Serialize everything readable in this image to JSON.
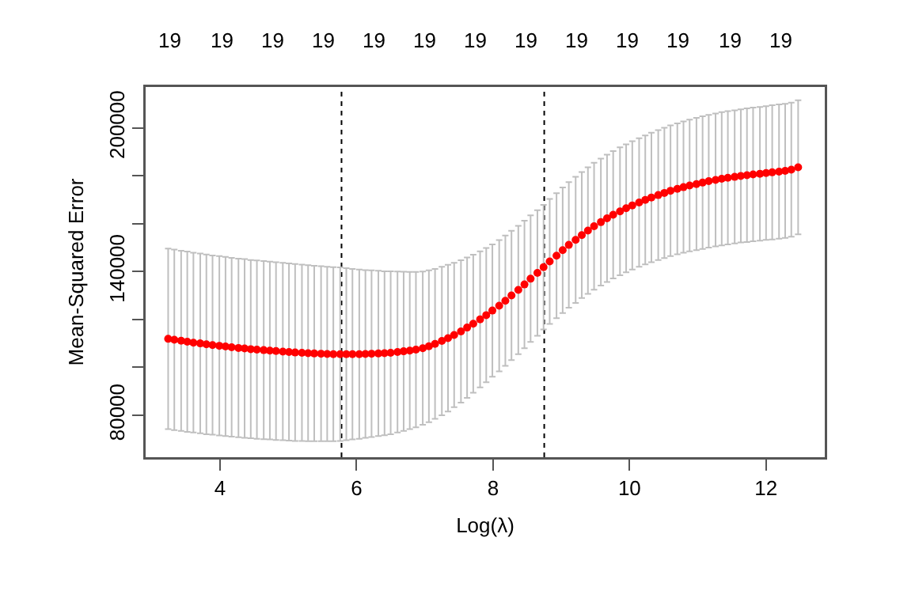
{
  "chart_data": {
    "type": "scatter",
    "xlabel": "Log(λ)",
    "ylabel": "Mean-Squared Error",
    "x": [
      3.24,
      3.33,
      3.43,
      3.52,
      3.61,
      3.71,
      3.8,
      3.89,
      3.99,
      4.08,
      4.17,
      4.27,
      4.36,
      4.45,
      4.54,
      4.64,
      4.73,
      4.82,
      4.92,
      5.01,
      5.1,
      5.2,
      5.29,
      5.38,
      5.48,
      5.57,
      5.66,
      5.76,
      5.85,
      5.94,
      6.04,
      6.13,
      6.22,
      6.32,
      6.41,
      6.5,
      6.6,
      6.69,
      6.78,
      6.87,
      6.97,
      7.06,
      7.15,
      7.25,
      7.34,
      7.43,
      7.53,
      7.62,
      7.71,
      7.81,
      7.9,
      7.99,
      8.09,
      8.18,
      8.27,
      8.37,
      8.46,
      8.55,
      8.65,
      8.74,
      8.83,
      8.93,
      9.02,
      9.11,
      9.21,
      9.3,
      9.39,
      9.48,
      9.58,
      9.67,
      9.76,
      9.86,
      9.95,
      10.04,
      10.14,
      10.23,
      10.32,
      10.42,
      10.51,
      10.6,
      10.7,
      10.79,
      10.88,
      10.98,
      11.07,
      11.16,
      11.26,
      11.35,
      11.44,
      11.54,
      11.63,
      11.72,
      11.81,
      11.91,
      12.0,
      12.09,
      12.19,
      12.28,
      12.37,
      12.47
    ],
    "series": [
      {
        "color": "#ff0000",
        "values": [
          111900,
          111500,
          111100,
          110700,
          110300,
          110000,
          109600,
          109300,
          109000,
          108700,
          108400,
          108100,
          107900,
          107600,
          107400,
          107200,
          107000,
          106800,
          106600,
          106400,
          106200,
          106100,
          105900,
          105800,
          105700,
          105600,
          105500,
          105500,
          105500,
          105500,
          105500,
          105600,
          105700,
          105800,
          105900,
          106100,
          106400,
          106700,
          107000,
          107400,
          108000,
          108800,
          109800,
          111000,
          112200,
          113500,
          115000,
          116600,
          118200,
          120000,
          121800,
          123700,
          125700,
          127800,
          130000,
          132300,
          134600,
          137000,
          139400,
          141800,
          144200,
          146600,
          148900,
          151100,
          153200,
          155200,
          157100,
          158900,
          160600,
          162200,
          163700,
          165100,
          166400,
          167600,
          168800,
          169900,
          170900,
          171900,
          172800,
          173700,
          174500,
          175200,
          175900,
          176500,
          177100,
          177700,
          178200,
          178700,
          179100,
          179500,
          179900,
          180200,
          180500,
          180800,
          181100,
          181400,
          181700,
          182000,
          182500,
          183500
        ],
        "errors": [
          37700,
          37700,
          37600,
          37600,
          37500,
          37500,
          37500,
          37400,
          37400,
          37400,
          37300,
          37300,
          37300,
          37200,
          37200,
          37200,
          37100,
          37100,
          37000,
          37000,
          36900,
          36800,
          36700,
          36600,
          36500,
          36400,
          36300,
          36200,
          35900,
          35600,
          35300,
          35000,
          34800,
          34500,
          34200,
          34000,
          33600,
          33200,
          32800,
          32400,
          32000,
          31700,
          31300,
          31000,
          30600,
          30100,
          29700,
          29300,
          28800,
          28400,
          28000,
          27600,
          27400,
          27200,
          27000,
          26800,
          26600,
          26400,
          26200,
          26000,
          26100,
          26100,
          26200,
          26200,
          26300,
          26300,
          26400,
          26500,
          26500,
          26600,
          26600,
          26700,
          26700,
          26800,
          26800,
          26900,
          27000,
          27100,
          27200,
          27300,
          27300,
          27400,
          27500,
          27600,
          27700,
          27700,
          27700,
          27800,
          27800,
          27800,
          27800,
          27900,
          27900,
          27900,
          27900,
          28000,
          28000,
          28000,
          28000,
          28000
        ]
      }
    ],
    "marker": "circle",
    "grid": false,
    "xlim": [
      2.91,
      12.86
    ],
    "xticks": [
      4,
      6,
      8,
      10,
      12
    ],
    "ylim": [
      62500,
      217000
    ],
    "yticks": [
      80000,
      {
        "value": 100000,
        "label": null
      },
      {
        "value": 120000,
        "label": null
      },
      140000,
      {
        "value": 160000,
        "label": null
      },
      {
        "value": 180000,
        "label": null
      },
      200000
    ],
    "annotations": [
      "19",
      "19",
      "19",
      "19",
      "19",
      "19",
      "19",
      "19",
      "19",
      "19",
      "19",
      "19",
      "19"
    ],
    "ref_lines": [
      {
        "axis": "x",
        "value": 5.78,
        "color": "#000000",
        "line_style": "dotted"
      },
      {
        "axis": "x",
        "value": 8.75,
        "color": "#000000",
        "line_style": "dotted"
      }
    ]
  }
}
